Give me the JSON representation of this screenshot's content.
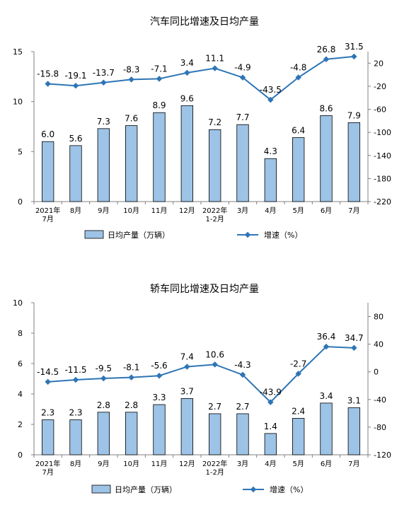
{
  "colors": {
    "bar_fill": "#9DC3E6",
    "bar_stroke": "#000000",
    "line": "#2E75B6",
    "axis": "#808080",
    "text": "#000000"
  },
  "chart_data": [
    {
      "type": "bar+line",
      "title": "汽车同比增速及日均产量",
      "categories": [
        "2021年\n7月",
        "8月",
        "9月",
        "10月",
        "11月",
        "12月",
        "2022年\n1-2月",
        "3月",
        "4月",
        "5月",
        "6月",
        "7月"
      ],
      "series": [
        {
          "name": "日均产量（万辆）",
          "type": "bar",
          "axis": "left",
          "values": [
            6.0,
            5.6,
            7.3,
            7.6,
            8.9,
            9.6,
            7.2,
            7.7,
            4.3,
            6.4,
            8.6,
            7.9
          ],
          "labels": [
            "6.0",
            "5.6",
            "7.3",
            "7.6",
            "8.9",
            "9.6",
            "7.2",
            "7.7",
            "4.3",
            "6.4",
            "8.6",
            "7.9"
          ]
        },
        {
          "name": "增速（%）",
          "type": "line",
          "axis": "right",
          "values": [
            -15.8,
            -19.1,
            -13.7,
            -8.3,
            -7.1,
            3.4,
            11.1,
            -4.9,
            -43.5,
            -4.8,
            26.8,
            31.5
          ],
          "labels": [
            "-15.8",
            "-19.1",
            "-13.7",
            "-8.3",
            "-7.1",
            "3.4",
            "11.1",
            "-4.9",
            "-43.5",
            "-4.8",
            "26.8",
            "31.5"
          ]
        }
      ],
      "y_left": {
        "min": 0,
        "max": 15,
        "ticks": [
          "0",
          "5",
          "10",
          "15"
        ],
        "tick_values": [
          0,
          5,
          10,
          15
        ]
      },
      "y_right": {
        "min": -220,
        "max": 40,
        "ticks": [
          "20",
          "-20",
          "-60",
          "-100",
          "-140",
          "-180",
          "-220"
        ],
        "tick_values": [
          20,
          -20,
          -60,
          -100,
          -140,
          -180,
          -220
        ]
      },
      "legend": "bottom",
      "grid": false
    },
    {
      "type": "bar+line",
      "title": "轿车同比增速及日均产量",
      "categories": [
        "2021年\n7月",
        "8月",
        "9月",
        "10月",
        "11月",
        "12月",
        "2022年\n1-2月",
        "3月",
        "4月",
        "5月",
        "6月",
        "7月"
      ],
      "series": [
        {
          "name": "日均产量（万辆）",
          "type": "bar",
          "axis": "left",
          "values": [
            2.3,
            2.3,
            2.8,
            2.8,
            3.3,
            3.7,
            2.7,
            2.7,
            1.4,
            2.4,
            3.4,
            3.1
          ],
          "labels": [
            "2.3",
            "2.3",
            "2.8",
            "2.8",
            "3.3",
            "3.7",
            "2.7",
            "2.7",
            "1.4",
            "2.4",
            "3.4",
            "3.1"
          ]
        },
        {
          "name": "增速（%）",
          "type": "line",
          "axis": "right",
          "values": [
            -14.5,
            -11.5,
            -9.5,
            -8.1,
            -5.6,
            7.4,
            10.6,
            -4.3,
            -43.9,
            -2.7,
            36.4,
            34.7
          ],
          "labels": [
            "-14.5",
            "-11.5",
            "-9.5",
            "-8.1",
            "-5.6",
            "7.4",
            "10.6",
            "-4.3",
            "-43.9",
            "-2.7",
            "36.4",
            "34.7"
          ]
        }
      ],
      "y_left": {
        "min": 0,
        "max": 10,
        "ticks": [
          "0",
          "2",
          "4",
          "6",
          "8",
          "10"
        ],
        "tick_values": [
          0,
          2,
          4,
          6,
          8,
          10
        ]
      },
      "y_right": {
        "min": -120,
        "max": 100,
        "ticks": [
          "80",
          "40",
          "0",
          "-40",
          "-80",
          "-120"
        ],
        "tick_values": [
          80,
          40,
          0,
          -40,
          -80,
          -120
        ]
      },
      "legend": "bottom",
      "grid": false
    }
  ]
}
